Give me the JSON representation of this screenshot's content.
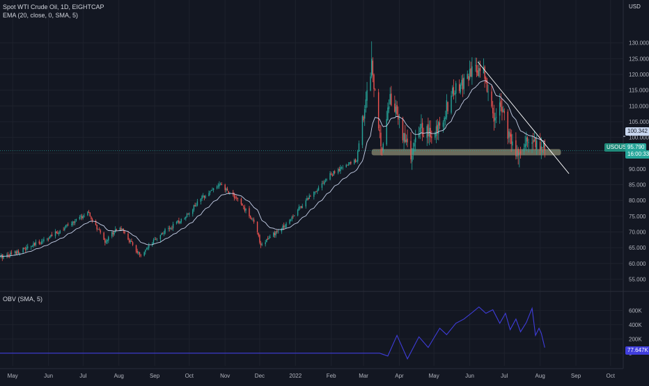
{
  "header": {
    "title": "Spot WTI Crude Oil, 1D, EIGHTCAP",
    "indicator": "EMA (20, close, 0, SMA, 5)",
    "currency": "USD"
  },
  "obv_header": "OBV (SMA, 5)",
  "labels": {
    "level_price": "100.342",
    "symbol": "USOUSD",
    "last_price": "95.790",
    "countdown": "16:00:33",
    "obv_value": "77.647K"
  },
  "colors": {
    "background": "#131722",
    "up": "#26a69a",
    "down": "#ef5350",
    "ema": "#c9d3ec",
    "obv": "#3f3ddc",
    "zone": "#8a8a70",
    "grid": "#1e222d"
  },
  "chart_data": [
    {
      "type": "candlestick",
      "title": "Spot WTI Crude Oil, 1D, EIGHTCAP",
      "ylabel": "USD",
      "ylim": [
        52,
        137
      ],
      "yticks": [
        "55.000",
        "60.000",
        "65.000",
        "70.000",
        "75.000",
        "80.000",
        "85.000",
        "90.000",
        "95.000",
        "100.000",
        "105.000",
        "110.000",
        "115.000",
        "120.000",
        "125.000",
        "130.000"
      ],
      "xticks": [
        "May",
        "Jun",
        "Jul",
        "Aug",
        "Sep",
        "Oct",
        "Nov",
        "Dec",
        "2022",
        "Feb",
        "Mar",
        "Apr",
        "May",
        "Jun",
        "Jul",
        "Aug",
        "Sep",
        "Oct"
      ],
      "x_range": [
        "2021-04-20",
        "2022-10-12"
      ],
      "close_path": [
        {
          "x": "2021-04-20",
          "y": 62
        },
        {
          "x": "2021-05-15",
          "y": 65
        },
        {
          "x": "2021-06-05",
          "y": 69
        },
        {
          "x": "2021-07-05",
          "y": 76
        },
        {
          "x": "2021-07-20",
          "y": 67
        },
        {
          "x": "2021-08-01",
          "y": 72
        },
        {
          "x": "2021-08-20",
          "y": 62
        },
        {
          "x": "2021-09-05",
          "y": 69
        },
        {
          "x": "2021-09-25",
          "y": 74
        },
        {
          "x": "2021-10-15",
          "y": 82
        },
        {
          "x": "2021-10-27",
          "y": 85
        },
        {
          "x": "2021-11-10",
          "y": 81
        },
        {
          "x": "2021-11-25",
          "y": 74
        },
        {
          "x": "2021-12-02",
          "y": 66
        },
        {
          "x": "2021-12-20",
          "y": 71
        },
        {
          "x": "2022-01-10",
          "y": 80
        },
        {
          "x": "2022-01-31",
          "y": 88
        },
        {
          "x": "2022-02-23",
          "y": 93
        },
        {
          "x": "2022-03-08",
          "y": 124
        },
        {
          "x": "2022-03-16",
          "y": 96
        },
        {
          "x": "2022-03-24",
          "y": 113
        },
        {
          "x": "2022-04-11",
          "y": 94
        },
        {
          "x": "2022-04-20",
          "y": 103
        },
        {
          "x": "2022-05-01",
          "y": 100
        },
        {
          "x": "2022-05-17",
          "y": 114
        },
        {
          "x": "2022-06-08",
          "y": 122
        },
        {
          "x": "2022-06-14",
          "y": 120
        },
        {
          "x": "2022-06-22",
          "y": 105
        },
        {
          "x": "2022-06-28",
          "y": 112
        },
        {
          "x": "2022-07-06",
          "y": 98
        },
        {
          "x": "2022-07-14",
          "y": 95
        },
        {
          "x": "2022-07-22",
          "y": 100
        },
        {
          "x": "2022-08-01",
          "y": 98
        },
        {
          "x": "2022-08-05",
          "y": 95.79
        }
      ],
      "ema": {
        "name": "EMA (20, close, 0, SMA, 5)",
        "period": 20
      },
      "annotations": {
        "support_zone": {
          "from": "2022-03-08",
          "to": "2022-08-19",
          "y_low": 94.3,
          "y_high": 96.3
        },
        "trendline": [
          {
            "x": "2022-06-08",
            "y": 124
          },
          {
            "x": "2022-08-26",
            "y": 88.5
          }
        ],
        "price_level": 95.79,
        "level_label": 100.342
      }
    },
    {
      "type": "line",
      "title": "OBV (SMA, 5)",
      "series": [
        {
          "name": "OBV",
          "points": [
            {
              "x": "2021-04-20",
              "y": 0
            },
            {
              "x": "2022-03-15",
              "y": 0
            },
            {
              "x": "2022-03-22",
              "y": -40000
            },
            {
              "x": "2022-03-30",
              "y": 250000
            },
            {
              "x": "2022-04-08",
              "y": -80000
            },
            {
              "x": "2022-04-18",
              "y": 230000
            },
            {
              "x": "2022-04-26",
              "y": 80000
            },
            {
              "x": "2022-05-06",
              "y": 350000
            },
            {
              "x": "2022-05-12",
              "y": 260000
            },
            {
              "x": "2022-05-20",
              "y": 420000
            },
            {
              "x": "2022-05-27",
              "y": 480000
            },
            {
              "x": "2022-06-03",
              "y": 570000
            },
            {
              "x": "2022-06-09",
              "y": 650000
            },
            {
              "x": "2022-06-15",
              "y": 560000
            },
            {
              "x": "2022-06-21",
              "y": 610000
            },
            {
              "x": "2022-06-27",
              "y": 420000
            },
            {
              "x": "2022-07-02",
              "y": 560000
            },
            {
              "x": "2022-07-06",
              "y": 330000
            },
            {
              "x": "2022-07-11",
              "y": 480000
            },
            {
              "x": "2022-07-15",
              "y": 300000
            },
            {
              "x": "2022-07-20",
              "y": 430000
            },
            {
              "x": "2022-07-25",
              "y": 630000
            },
            {
              "x": "2022-07-28",
              "y": 250000
            },
            {
              "x": "2022-07-31",
              "y": 350000
            },
            {
              "x": "2022-08-02",
              "y": 280000
            },
            {
              "x": "2022-08-05",
              "y": 77647
            }
          ]
        }
      ],
      "ylim": [
        -100000,
        780000
      ],
      "yticks": [
        "600K",
        "400K",
        "200K",
        "0"
      ]
    }
  ]
}
